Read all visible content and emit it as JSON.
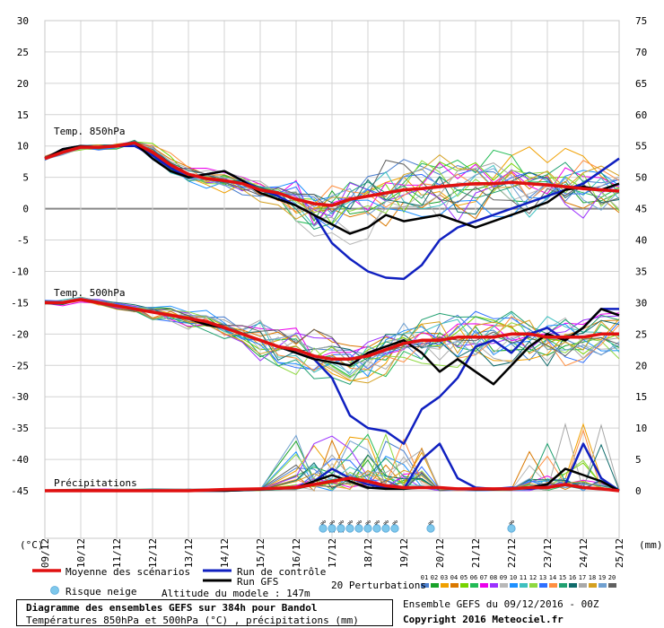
{
  "chart_data": {
    "type": "line",
    "title": "Diagramme des ensembles GEFS sur 384h pour Bandol",
    "subtitle": "Températures 850hPa et 500hPa (°C) , précipitations (mm)",
    "left_axis": {
      "unit": "(°C)",
      "ylim": [
        -45,
        30
      ],
      "ticks": [
        30,
        25,
        20,
        15,
        10,
        5,
        0,
        -5,
        -10,
        -15,
        -20,
        -25,
        -30,
        -35,
        -40,
        -45
      ]
    },
    "right_axis": {
      "unit": "(mm)",
      "ylim": [
        0,
        75
      ],
      "ticks": [
        75,
        70,
        65,
        60,
        55,
        50,
        45,
        40,
        35,
        30,
        25,
        20,
        15,
        10,
        5,
        0
      ]
    },
    "x": {
      "range_days": [
        0,
        16
      ],
      "dates": [
        "09/12",
        "10/12",
        "11/12",
        "12/12",
        "13/12",
        "14/12",
        "15/12",
        "16/12",
        "17/12",
        "18/12",
        "19/12",
        "20/12",
        "21/12",
        "22/12",
        "23/12",
        "24/12",
        "25/12"
      ]
    },
    "panel_labels": [
      "Temp. 850hPa",
      "Temp. 500hPa",
      "Précipitations"
    ],
    "panel_unit_note": "Panels are stacked: 850hPa panel plotted at true °C; 500hPa panel plotted at true °C; precipitation panel uses right axis (mm).",
    "series": [
      {
        "name": "Moyenne des scénarios",
        "panel": "t850",
        "x": [
          0,
          0.5,
          1,
          1.5,
          2,
          2.5,
          3,
          3.5,
          4,
          4.5,
          5,
          5.5,
          6,
          6.5,
          7,
          7.5,
          8,
          8.5,
          9,
          9.5,
          10,
          10.5,
          11,
          11.5,
          12,
          12.5,
          13,
          13.5,
          14,
          14.5,
          15,
          15.5,
          16
        ],
        "values": [
          8,
          9,
          9.8,
          9.8,
          10,
          10.5,
          9,
          7,
          5.5,
          4.8,
          4.5,
          4,
          3,
          2.5,
          1.5,
          0.8,
          0.5,
          1.5,
          2,
          2.5,
          3,
          3.2,
          3.5,
          3.8,
          4,
          4,
          4.2,
          4,
          3.8,
          3.5,
          3.2,
          3,
          2.8
        ]
      },
      {
        "name": "Run de contrôle",
        "panel": "t850",
        "x": [
          0,
          0.5,
          1,
          1.5,
          2,
          2.5,
          3,
          3.5,
          4,
          4.5,
          5,
          5.5,
          6,
          6.5,
          7,
          7.5,
          8,
          8.5,
          9,
          9.5,
          10,
          10.5,
          11,
          11.5,
          12,
          12.5,
          13,
          13.5,
          14,
          14.5,
          15,
          15.5,
          16
        ],
        "values": [
          8,
          9.5,
          10,
          9.8,
          10,
          10,
          8.5,
          6.5,
          5,
          5.5,
          6,
          4.5,
          3,
          2,
          0.5,
          -1,
          -5.5,
          -8,
          -10,
          -11,
          -11.2,
          -9,
          -5,
          -3,
          -2,
          -1,
          0,
          1,
          2,
          3,
          4,
          6,
          8
        ]
      },
      {
        "name": "Run GFS",
        "panel": "t850",
        "x": [
          0,
          0.5,
          1,
          1.5,
          2,
          2.5,
          3,
          3.5,
          4,
          4.5,
          5,
          5.5,
          6,
          6.5,
          7,
          7.5,
          8,
          8.5,
          9,
          9.5,
          10,
          10.5,
          11,
          11.5,
          12,
          12.5,
          13,
          13.5,
          14,
          14.5,
          15,
          15.5,
          16
        ],
        "values": [
          8,
          9.5,
          10,
          9.8,
          10,
          10.5,
          8,
          6,
          5,
          5.5,
          6,
          4.5,
          2.5,
          1.5,
          0.5,
          -1,
          -2.5,
          -4,
          -3,
          -1,
          -2,
          -1.5,
          -1,
          -2,
          -3,
          -2,
          -1,
          0,
          1,
          3,
          3.5,
          3,
          4
        ]
      },
      {
        "name": "Moyenne des scénarios",
        "panel": "t500",
        "x": [
          0,
          0.5,
          1,
          1.5,
          2,
          2.5,
          3,
          3.5,
          4,
          4.5,
          5,
          5.5,
          6,
          6.5,
          7,
          7.5,
          8,
          8.5,
          9,
          9.5,
          10,
          10.5,
          11,
          11.5,
          12,
          12.5,
          13,
          13.5,
          14,
          14.5,
          15,
          15.5,
          16
        ],
        "values": [
          -15,
          -15,
          -14.5,
          -15,
          -15.5,
          -16,
          -16.5,
          -17,
          -17.5,
          -18,
          -19,
          -20,
          -21,
          -22,
          -22.5,
          -23.5,
          -24,
          -24,
          -23.5,
          -22.5,
          -21.5,
          -21,
          -21,
          -20.5,
          -20.5,
          -20.5,
          -20,
          -20,
          -20.5,
          -20.5,
          -20.5,
          -20,
          -20
        ]
      },
      {
        "name": "Run de contrôle",
        "panel": "t500",
        "x": [
          0,
          0.5,
          1,
          1.5,
          2,
          2.5,
          3,
          3.5,
          4,
          4.5,
          5,
          5.5,
          6,
          6.5,
          7,
          7.5,
          8,
          8.5,
          9,
          9.5,
          10,
          10.5,
          11,
          11.5,
          12,
          12.5,
          13,
          13.5,
          14,
          14.5,
          15,
          15.5,
          16
        ],
        "values": [
          -15,
          -15,
          -14.5,
          -15,
          -15.5,
          -16,
          -16.5,
          -17,
          -17.5,
          -18.5,
          -19,
          -20,
          -21,
          -22,
          -23,
          -24,
          -27,
          -33,
          -35,
          -35.5,
          -37.5,
          -32,
          -30,
          -27,
          -22,
          -21,
          -23,
          -20,
          -19,
          -21,
          -19,
          -16,
          -16
        ]
      },
      {
        "name": "Run GFS",
        "panel": "t500",
        "x": [
          0,
          0.5,
          1,
          1.5,
          2,
          2.5,
          3,
          3.5,
          4,
          4.5,
          5,
          5.5,
          6,
          6.5,
          7,
          7.5,
          8,
          8.5,
          9,
          9.5,
          10,
          10.5,
          11,
          11.5,
          12,
          12.5,
          13,
          13.5,
          14,
          14.5,
          15,
          15.5,
          16
        ],
        "values": [
          -15,
          -15,
          -14.5,
          -15,
          -15.5,
          -16,
          -16.5,
          -17,
          -17.5,
          -18.5,
          -19,
          -20,
          -21,
          -22,
          -23,
          -24,
          -24.5,
          -25,
          -23,
          -22,
          -21,
          -23,
          -26,
          -24,
          -26,
          -28,
          -25,
          -22,
          -20,
          -21,
          -19,
          -16,
          -17
        ]
      },
      {
        "name": "Moyenne des scénarios",
        "panel": "precip",
        "x": [
          0,
          1,
          2,
          3,
          4,
          5,
          6,
          7,
          7.5,
          8,
          8.5,
          9,
          9.5,
          10,
          10.5,
          11,
          11.5,
          12,
          12.5,
          13,
          13.5,
          14,
          14.5,
          15,
          15.5,
          16
        ],
        "values": [
          0,
          0,
          0,
          0,
          0,
          0.2,
          0.3,
          0.5,
          1,
          1.5,
          2,
          1.5,
          0.8,
          0.5,
          0.5,
          0.5,
          0.3,
          0.3,
          0.3,
          0.3,
          0.5,
          0.5,
          1,
          0.5,
          0.3,
          0
        ]
      },
      {
        "name": "Run de contrôle",
        "panel": "precip",
        "x": [
          0,
          1,
          2,
          3,
          4,
          5,
          6,
          7,
          7.5,
          8,
          8.5,
          9,
          9.5,
          10,
          10.5,
          11,
          11.5,
          12,
          12.5,
          13,
          13.5,
          14,
          14.5,
          15,
          15.5,
          16
        ],
        "values": [
          0,
          0,
          0,
          0,
          0,
          0,
          0.2,
          0.5,
          1.5,
          3.5,
          2,
          1,
          0.5,
          0.3,
          5,
          7.5,
          2,
          0.5,
          0.3,
          0.5,
          0.3,
          0.5,
          1,
          7.5,
          2,
          0
        ]
      },
      {
        "name": "Run GFS",
        "panel": "precip",
        "x": [
          0,
          1,
          2,
          3,
          4,
          5,
          6,
          7,
          7.5,
          8,
          8.5,
          9,
          9.5,
          10,
          10.5,
          11,
          11.5,
          12,
          12.5,
          13,
          13.5,
          14,
          14.5,
          15,
          15.5,
          16
        ],
        "values": [
          0,
          0,
          0,
          0,
          0,
          0,
          0.2,
          0.5,
          1.5,
          2.5,
          1.5,
          0.5,
          0.3,
          0.3,
          0.5,
          0.5,
          0.3,
          0.2,
          0.2,
          0.3,
          0.5,
          1,
          3.5,
          2.5,
          1.5,
          0
        ]
      }
    ],
    "snow_risk": [
      {
        "day": 7.75,
        "label": "5%"
      },
      {
        "day": 8.0,
        "label": "10%"
      },
      {
        "day": 8.25,
        "label": "10%"
      },
      {
        "day": 8.5,
        "label": "5%"
      },
      {
        "day": 8.75,
        "label": "5%"
      },
      {
        "day": 9.0,
        "label": "5%"
      },
      {
        "day": 9.25,
        "label": "5%"
      },
      {
        "day": 9.5,
        "label": "5%"
      },
      {
        "day": 9.75,
        "label": "5%"
      },
      {
        "day": 10.75,
        "label": "5%"
      },
      {
        "day": 13.0,
        "label": "5%"
      }
    ],
    "perturbation_codes": [
      "01",
      "02",
      "03",
      "04",
      "05",
      "06",
      "07",
      "08",
      "09",
      "10",
      "11",
      "12",
      "13",
      "14",
      "15",
      "16",
      "17",
      "18",
      "19",
      "20"
    ],
    "perturbation_colors": [
      "#4a7fcf",
      "#19a22a",
      "#f0a000",
      "#d97800",
      "#77d400",
      "#22bb55",
      "#ec00ec",
      "#9b30ff",
      "#b8b8b8",
      "#1e90ff",
      "#3ec0c0",
      "#8ed840",
      "#2f70ff",
      "#ff8f40",
      "#20a070",
      "#0f6b6b",
      "#a8a8a8",
      "#d4a020",
      "#70a0d0",
      "#606060"
    ]
  },
  "legend": {
    "mean_label": "Moyenne des scénarios",
    "control_label": "Run de contrôle",
    "gfs_label": "Run GFS",
    "snow_label": "Risque neige",
    "altitude_label": "Altitude du modele : 147m",
    "perturbations_label": "20 Perturbations"
  },
  "footer": {
    "title": "Diagramme des ensembles GEFS sur 384h pour Bandol",
    "subtitle": "Températures 850hPa et 500hPa (°C) , précipitations (mm)",
    "ensemble_run": "Ensemble GEFS du 09/12/2016 - 00Z",
    "copyright": "Copyright 2016 Meteociel.fr"
  },
  "colors": {
    "mean": "#e01010",
    "control": "#1020c0",
    "gfs": "#000000",
    "snow": "#7ec8ec"
  }
}
